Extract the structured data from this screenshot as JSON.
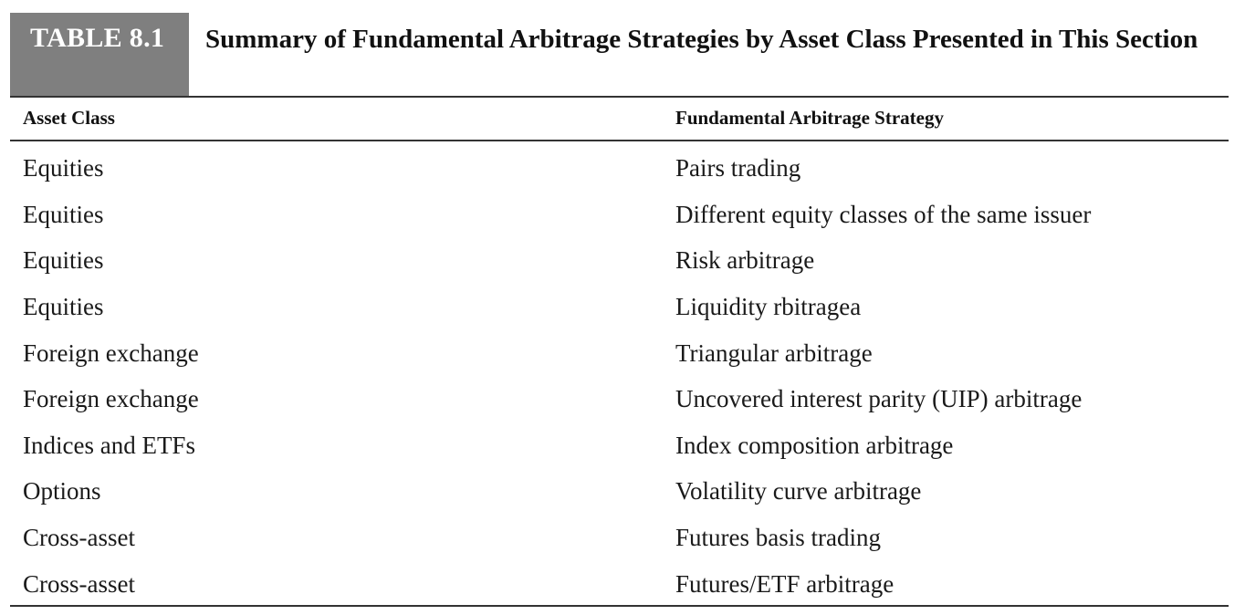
{
  "table": {
    "label": "TABLE 8.1",
    "title": "Summary of Fundamental Arbitrage Strategies by Asset Class Presented in This Section",
    "columns": [
      "Asset Class",
      "Fundamental Arbitrage Strategy"
    ],
    "rows": [
      [
        "Equities",
        "Pairs trading"
      ],
      [
        "Equities",
        "Different equity classes of the same issuer"
      ],
      [
        "Equities",
        "Risk arbitrage"
      ],
      [
        "Equities",
        "Liquidity rbitragea"
      ],
      [
        "Foreign exchange",
        "Triangular arbitrage"
      ],
      [
        "Foreign exchange",
        "Uncovered interest parity (UIP) arbitrage"
      ],
      [
        "Indices and ETFs",
        "Index composition arbitrage"
      ],
      [
        "Options",
        "Volatility curve arbitrage"
      ],
      [
        "Cross-asset",
        "Futures basis trading"
      ],
      [
        "Cross-asset",
        "Futures/ETF arbitrage"
      ]
    ]
  }
}
